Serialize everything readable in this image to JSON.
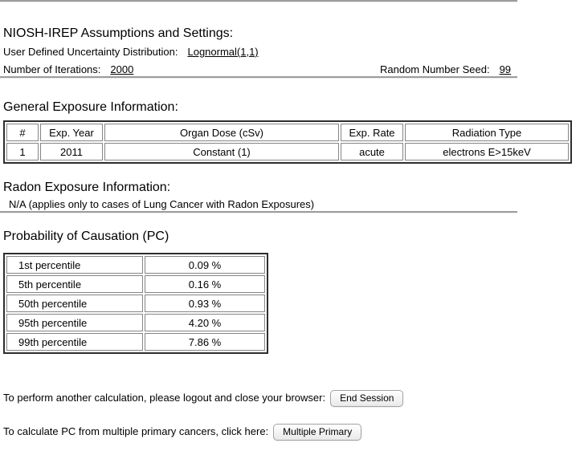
{
  "assumptions": {
    "heading": "NIOSH-IREP Assumptions and Settings:",
    "uncertainty_label": "User Defined Uncertainty Distribution:",
    "uncertainty_value": "Lognormal(1,1)",
    "iterations_label": "Number of Iterations:",
    "iterations_value": "2000",
    "seed_label": "Random Number Seed:",
    "seed_value": "99"
  },
  "general_exposure": {
    "heading": "General Exposure Information:",
    "table": {
      "headers": [
        "#",
        "Exp. Year",
        "Organ Dose (cSv)",
        "Exp. Rate",
        "Radiation Type"
      ],
      "rows": [
        [
          "1",
          "2011",
          "Constant (1)",
          "acute",
          "electrons E>15keV"
        ]
      ]
    }
  },
  "radon": {
    "heading": "Radon Exposure Information:",
    "note": "N/A (applies only to cases of Lung Cancer with Radon Exposures)"
  },
  "pc": {
    "heading": "Probability of Causation (PC)",
    "table": {
      "rows": [
        {
          "label": "1st percentile",
          "value": "0.09 %"
        },
        {
          "label": "5th percentile",
          "value": "0.16 %"
        },
        {
          "label": "50th percentile",
          "value": "0.93 %"
        },
        {
          "label": "95th percentile",
          "value": "4.20 %"
        },
        {
          "label": "99th percentile",
          "value": "7.86 %"
        }
      ]
    }
  },
  "footer": {
    "end_session_text": "To perform another calculation, please logout and close your browser:",
    "end_session_button": "End Session",
    "multiple_primary_text": "To calculate PC from multiple primary cancers, click here:",
    "multiple_primary_button": "Multiple Primary"
  }
}
